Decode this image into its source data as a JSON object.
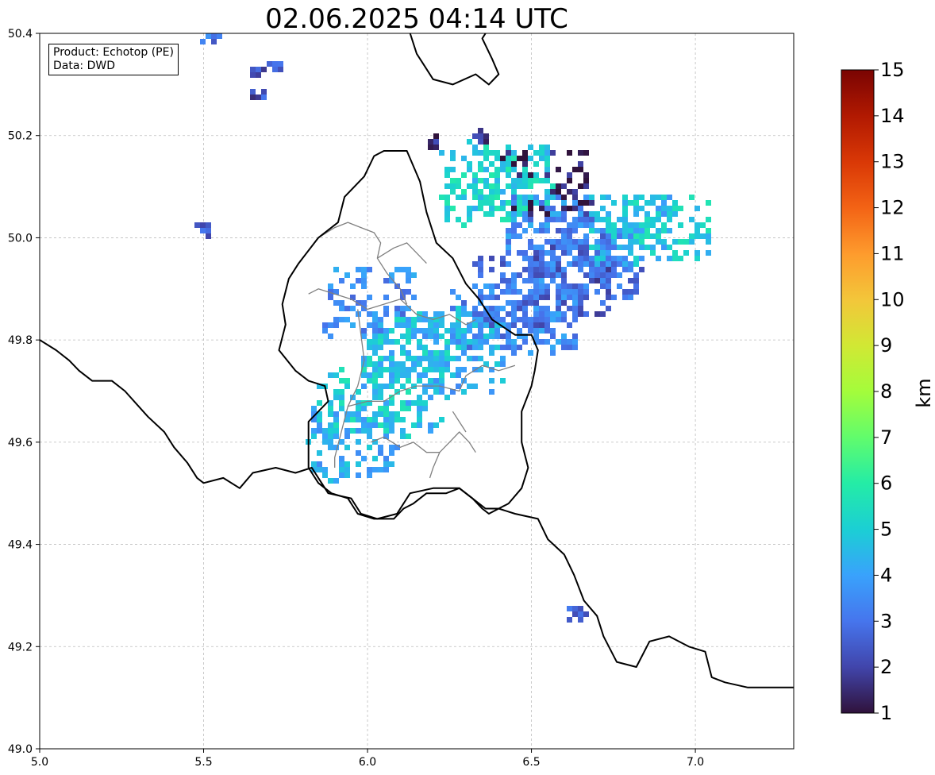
{
  "title": "02.06.2025 04:14 UTC",
  "info": {
    "product": "Product: Echotop (PE)",
    "source": "Data: DWD"
  },
  "map": {
    "lon_range": [
      5.0,
      7.3
    ],
    "lat_range": [
      49.0,
      50.4
    ],
    "x_ticks": [
      "5.0",
      "5.5",
      "6.0",
      "6.5",
      "7.0"
    ],
    "x_tick_values": [
      5.0,
      5.5,
      6.0,
      6.5,
      7.0
    ],
    "y_ticks": [
      "49.0",
      "49.2",
      "49.4",
      "49.6",
      "49.8",
      "50.0",
      "50.2",
      "50.4"
    ],
    "y_tick_values": [
      49.0,
      49.2,
      49.4,
      49.6,
      49.8,
      50.0,
      50.2,
      50.4
    ],
    "grid": true,
    "country_border": [
      [
        5.0,
        49.8
      ],
      [
        5.05,
        49.78
      ],
      [
        5.09,
        49.76
      ],
      [
        5.12,
        49.74
      ],
      [
        5.16,
        49.72
      ],
      [
        5.22,
        49.72
      ],
      [
        5.26,
        49.7
      ],
      [
        5.33,
        49.65
      ],
      [
        5.38,
        49.62
      ],
      [
        5.41,
        49.59
      ],
      [
        5.45,
        49.56
      ],
      [
        5.48,
        49.53
      ],
      [
        5.5,
        49.52
      ],
      [
        5.56,
        49.53
      ],
      [
        5.61,
        49.51
      ],
      [
        5.65,
        49.54
      ],
      [
        5.72,
        49.55
      ],
      [
        5.78,
        49.54
      ],
      [
        5.83,
        49.55
      ],
      [
        5.86,
        49.52
      ],
      [
        5.88,
        49.5
      ],
      [
        5.95,
        49.49
      ],
      [
        5.98,
        49.46
      ],
      [
        6.03,
        49.45
      ],
      [
        6.09,
        49.46
      ],
      [
        6.13,
        49.5
      ],
      [
        6.2,
        49.51
      ],
      [
        6.28,
        49.51
      ],
      [
        6.36,
        49.47
      ],
      [
        6.4,
        49.47
      ],
      [
        6.45,
        49.46
      ],
      [
        6.52,
        49.45
      ],
      [
        6.55,
        49.41
      ],
      [
        6.6,
        49.38
      ],
      [
        6.63,
        49.34
      ],
      [
        6.66,
        49.29
      ],
      [
        6.7,
        49.26
      ],
      [
        6.72,
        49.22
      ],
      [
        6.76,
        49.17
      ],
      [
        6.82,
        49.16
      ],
      [
        6.86,
        49.21
      ],
      [
        6.92,
        49.22
      ],
      [
        6.98,
        49.2
      ],
      [
        7.03,
        49.19
      ],
      [
        7.05,
        49.14
      ],
      [
        7.09,
        49.13
      ],
      [
        7.16,
        49.12
      ],
      [
        7.25,
        49.12
      ],
      [
        7.3,
        49.12
      ]
    ],
    "lux_border": [
      [
        5.82,
        49.55
      ],
      [
        5.85,
        49.52
      ],
      [
        5.89,
        49.5
      ],
      [
        5.94,
        49.49
      ],
      [
        5.97,
        49.46
      ],
      [
        6.02,
        49.45
      ],
      [
        6.08,
        49.45
      ],
      [
        6.11,
        49.47
      ],
      [
        6.14,
        49.48
      ],
      [
        6.18,
        49.5
      ],
      [
        6.24,
        49.5
      ],
      [
        6.28,
        49.51
      ],
      [
        6.32,
        49.49
      ],
      [
        6.35,
        49.47
      ],
      [
        6.37,
        49.46
      ],
      [
        6.43,
        49.48
      ],
      [
        6.47,
        49.51
      ],
      [
        6.49,
        49.55
      ],
      [
        6.47,
        49.6
      ],
      [
        6.47,
        49.66
      ],
      [
        6.5,
        49.71
      ],
      [
        6.51,
        49.74
      ],
      [
        6.52,
        49.78
      ],
      [
        6.5,
        49.81
      ],
      [
        6.45,
        49.81
      ],
      [
        6.38,
        49.84
      ],
      [
        6.34,
        49.88
      ],
      [
        6.3,
        49.91
      ],
      [
        6.26,
        49.96
      ],
      [
        6.21,
        49.99
      ],
      [
        6.18,
        50.05
      ],
      [
        6.16,
        50.11
      ],
      [
        6.12,
        50.17
      ],
      [
        6.05,
        50.17
      ],
      [
        6.02,
        50.16
      ],
      [
        5.99,
        50.12
      ],
      [
        5.96,
        50.1
      ],
      [
        5.93,
        50.08
      ],
      [
        5.91,
        50.03
      ],
      [
        5.85,
        50.0
      ],
      [
        5.79,
        49.95
      ],
      [
        5.76,
        49.92
      ],
      [
        5.74,
        49.87
      ],
      [
        5.75,
        49.83
      ],
      [
        5.73,
        49.78
      ],
      [
        5.78,
        49.74
      ],
      [
        5.82,
        49.72
      ],
      [
        5.87,
        49.71
      ],
      [
        5.88,
        49.68
      ],
      [
        5.82,
        49.64
      ],
      [
        5.82,
        49.58
      ],
      [
        5.82,
        49.55
      ]
    ],
    "de_border": [
      [
        6.13,
        50.4
      ],
      [
        6.15,
        50.36
      ],
      [
        6.17,
        50.34
      ],
      [
        6.2,
        50.31
      ],
      [
        6.26,
        50.3
      ],
      [
        6.33,
        50.32
      ],
      [
        6.37,
        50.3
      ],
      [
        6.4,
        50.32
      ],
      [
        6.38,
        50.35
      ],
      [
        6.35,
        50.39
      ],
      [
        6.36,
        50.4
      ]
    ],
    "canton_lines": [
      [
        [
          5.82,
          49.89
        ],
        [
          5.85,
          49.9
        ],
        [
          5.9,
          49.89
        ],
        [
          5.95,
          49.88
        ],
        [
          6.0,
          49.86
        ],
        [
          6.05,
          49.87
        ],
        [
          6.1,
          49.88
        ],
        [
          6.15,
          49.85
        ],
        [
          6.2,
          49.84
        ],
        [
          6.25,
          49.85
        ],
        [
          6.3,
          49.83
        ],
        [
          6.33,
          49.84
        ]
      ],
      [
        [
          5.85,
          50.0
        ],
        [
          5.9,
          50.02
        ],
        [
          5.94,
          50.03
        ],
        [
          5.98,
          50.02
        ],
        [
          6.02,
          50.01
        ],
        [
          6.04,
          49.99
        ],
        [
          6.03,
          49.96
        ],
        [
          6.06,
          49.93
        ],
        [
          6.1,
          49.9
        ],
        [
          6.12,
          49.87
        ]
      ],
      [
        [
          6.03,
          49.96
        ],
        [
          6.08,
          49.98
        ],
        [
          6.12,
          49.99
        ],
        [
          6.15,
          49.97
        ],
        [
          6.18,
          49.95
        ]
      ],
      [
        [
          5.97,
          49.86
        ],
        [
          5.98,
          49.81
        ],
        [
          5.99,
          49.76
        ],
        [
          5.97,
          49.71
        ],
        [
          5.94,
          49.67
        ],
        [
          5.92,
          49.62
        ],
        [
          5.9,
          49.57
        ],
        [
          5.9,
          49.55
        ]
      ],
      [
        [
          5.94,
          49.67
        ],
        [
          6.0,
          49.68
        ],
        [
          6.05,
          49.68
        ],
        [
          6.1,
          49.7
        ],
        [
          6.15,
          49.71
        ],
        [
          6.22,
          49.71
        ],
        [
          6.28,
          49.7
        ],
        [
          6.3,
          49.73
        ],
        [
          6.35,
          49.75
        ],
        [
          6.4,
          49.74
        ],
        [
          6.45,
          49.75
        ]
      ],
      [
        [
          6.01,
          49.6
        ],
        [
          6.05,
          49.61
        ],
        [
          6.1,
          49.59
        ],
        [
          6.14,
          49.6
        ],
        [
          6.18,
          49.58
        ],
        [
          6.22,
          49.58
        ],
        [
          6.25,
          49.6
        ],
        [
          6.28,
          49.62
        ],
        [
          6.31,
          49.6
        ],
        [
          6.33,
          49.58
        ]
      ],
      [
        [
          6.26,
          49.66
        ],
        [
          6.28,
          49.64
        ],
        [
          6.3,
          49.62
        ]
      ],
      [
        [
          6.22,
          49.58
        ],
        [
          6.2,
          49.55
        ],
        [
          6.19,
          49.53
        ]
      ]
    ]
  },
  "colorbar": {
    "label": "km",
    "min": 1,
    "max": 15,
    "tick_labels": [
      "1",
      "2",
      "3",
      "4",
      "5",
      "6",
      "7",
      "8",
      "9",
      "10",
      "11",
      "12",
      "13",
      "14",
      "15"
    ],
    "tick_values": [
      1,
      2,
      3,
      4,
      5,
      6,
      7,
      8,
      9,
      10,
      11,
      12,
      13,
      14,
      15
    ],
    "colormap": "turbo",
    "stops": [
      "#30123b",
      "#4145ab",
      "#4675ed",
      "#39a2fc",
      "#1bcfd4",
      "#24eca6",
      "#61fc6c",
      "#a4fc3b",
      "#d1e834",
      "#f3c63a",
      "#fe9b2d",
      "#f36315",
      "#d93806",
      "#b11901",
      "#7a0402"
    ]
  },
  "echotop_clusters": [
    {
      "lon": 5.51,
      "lat": 50.4,
      "value": 3.0
    },
    {
      "lon": 5.65,
      "lat": 50.33,
      "value": 2.5
    },
    {
      "lon": 5.71,
      "lat": 50.34,
      "value": 3.0
    },
    {
      "lon": 5.66,
      "lat": 50.29,
      "value": 2.2
    },
    {
      "lon": 5.5,
      "lat": 50.02,
      "value": 2.3
    },
    {
      "lon": 6.34,
      "lat": 50.2,
      "value": 1.5
    },
    {
      "lon": 6.19,
      "lat": 50.19,
      "value": 1.5
    },
    {
      "lon": 6.54,
      "lat": 50.11,
      "value": 1.2
    },
    {
      "lon": 6.43,
      "lat": 50.12,
      "value": 5.0
    },
    {
      "lon": 6.35,
      "lat": 50.1,
      "value": 5.2
    },
    {
      "lon": 6.55,
      "lat": 50.02,
      "value": 3.6
    },
    {
      "lon": 6.62,
      "lat": 49.97,
      "value": 3.2
    },
    {
      "lon": 6.6,
      "lat": 49.92,
      "value": 2.5
    },
    {
      "lon": 6.7,
      "lat": 49.95,
      "value": 3.0
    },
    {
      "lon": 6.45,
      "lat": 49.9,
      "value": 2.8
    },
    {
      "lon": 6.5,
      "lat": 49.85,
      "value": 3.5
    },
    {
      "lon": 6.38,
      "lat": 49.86,
      "value": 3.3
    },
    {
      "lon": 6.2,
      "lat": 49.8,
      "value": 4.6
    },
    {
      "lon": 6.12,
      "lat": 49.78,
      "value": 4.8
    },
    {
      "lon": 6.28,
      "lat": 49.77,
      "value": 4.2
    },
    {
      "lon": 6.1,
      "lat": 49.7,
      "value": 4.5
    },
    {
      "lon": 5.98,
      "lat": 49.68,
      "value": 5.0
    },
    {
      "lon": 5.95,
      "lat": 49.6,
      "value": 4.2
    },
    {
      "lon": 6.0,
      "lat": 49.88,
      "value": 3.5
    },
    {
      "lon": 6.8,
      "lat": 50.02,
      "value": 4.5
    },
    {
      "lon": 6.9,
      "lat": 50.02,
      "value": 5.0
    },
    {
      "lon": 6.63,
      "lat": 49.27,
      "value": 2.8
    }
  ]
}
